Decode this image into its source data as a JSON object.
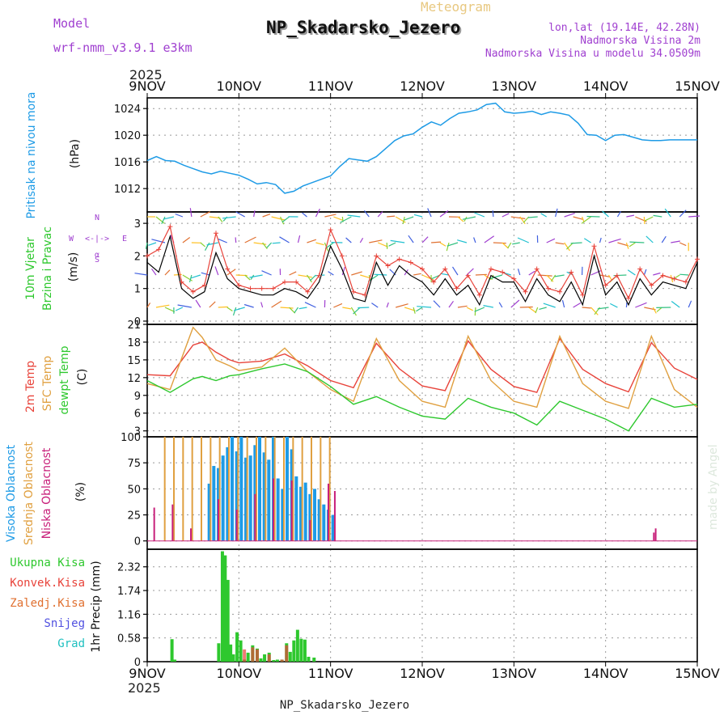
{
  "header": {
    "model_label": "Model",
    "model_name": "wrf-nmm_v3.9.1  e3km",
    "meteogram_label": "Meteogram",
    "station_title": "NP_Skadarsko_Jezero",
    "lonlat": "lon,lat (19.14E, 42.28N)",
    "altitude": "Nadmorska Visina 2m",
    "model_altitude": "Nadmorska Visina u modelu 34.0509m",
    "footer_title": "NP_Skadarsko_Jezero",
    "watermark": "made by Angel",
    "year_top": "2025",
    "year_bottom": "2025"
  },
  "colors": {
    "pressure": "#1e9be6",
    "temp2m": "#e8433a",
    "sfctemp": "#e0a040",
    "dewpt": "#2ec82e",
    "high_cloud": "#1e9be6",
    "mid_cloud": "#e0a040",
    "low_cloud": "#c8207a",
    "precip_total": "#2ec82e",
    "precip_conv": "#e8433a",
    "precip_frz": "#e07030",
    "snow": "#5050e0",
    "hail": "#20c0c0",
    "wind_speed": "#000000",
    "wind_gust": "#e8433a",
    "accent_purple": "#a040d0"
  },
  "chart_data": [
    {
      "type": "line",
      "title": "Pritisak na nivou mora",
      "ylabel": "(hPa)",
      "ylim": [
        1008.5,
        1025.6
      ],
      "yticks": [
        1012,
        1016,
        1020,
        1024
      ],
      "x_days": [
        0,
        0.1,
        0.2,
        0.3,
        0.4,
        0.5,
        0.6,
        0.7,
        0.8,
        0.9,
        1.0,
        1.1,
        1.2,
        1.3,
        1.4,
        1.5,
        1.6,
        1.7,
        1.8,
        1.9,
        2.0,
        2.1,
        2.2,
        2.3,
        2.4,
        2.5,
        2.6,
        2.7,
        2.8,
        2.9,
        3.0,
        3.1,
        3.2,
        3.3,
        3.4,
        3.5,
        3.6,
        3.7,
        3.8,
        3.9,
        4.0,
        4.1,
        4.2,
        4.3,
        4.4,
        4.5,
        4.6,
        4.7,
        4.8,
        4.9,
        5.0,
        5.1,
        5.2,
        5.3,
        5.4,
        5.5,
        5.6,
        5.7,
        5.8,
        5.9,
        6.0
      ],
      "values": [
        1016.2,
        1016.8,
        1016.2,
        1016.1,
        1015.5,
        1015.0,
        1014.5,
        1014.2,
        1014.6,
        1014.3,
        1014.0,
        1013.4,
        1012.7,
        1012.9,
        1012.6,
        1011.3,
        1011.6,
        1012.4,
        1012.9,
        1013.4,
        1013.9,
        1015.3,
        1016.5,
        1016.3,
        1016.1,
        1016.8,
        1018.0,
        1019.2,
        1019.9,
        1020.2,
        1021.2,
        1022.0,
        1021.5,
        1022.5,
        1023.3,
        1023.5,
        1023.8,
        1024.6,
        1024.8,
        1023.5,
        1023.3,
        1023.4,
        1023.6,
        1023.1,
        1023.5,
        1023.3,
        1023.0,
        1021.8,
        1020.1,
        1020.0,
        1019.2,
        1020.0,
        1020.1,
        1019.7,
        1019.3,
        1019.2,
        1019.2,
        1019.3,
        1019.3,
        1019.3,
        1019.3
      ]
    },
    {
      "type": "line",
      "title": "10m Vjetar Brzina i Pravac",
      "ylabel": "(m/s)",
      "ylim": [
        -0.1,
        3.35
      ],
      "yticks": [
        0,
        1,
        2,
        3
      ],
      "direction_key": {
        "n": "N",
        "e": "E",
        "w": "W",
        "s": "S",
        "mid": "<-|->",
        "sym": "α"
      },
      "x_days": [
        0,
        0.125,
        0.25,
        0.375,
        0.5,
        0.625,
        0.75,
        0.875,
        1.0,
        1.125,
        1.25,
        1.375,
        1.5,
        1.625,
        1.75,
        1.875,
        2.0,
        2.125,
        2.25,
        2.375,
        2.5,
        2.625,
        2.75,
        2.875,
        3.0,
        3.125,
        3.25,
        3.375,
        3.5,
        3.625,
        3.75,
        3.875,
        4.0,
        4.125,
        4.25,
        4.375,
        4.5,
        4.625,
        4.75,
        4.875,
        5.0,
        5.125,
        5.25,
        5.375,
        5.5,
        5.625,
        5.75,
        5.875,
        6.0
      ],
      "speed": [
        1.8,
        1.5,
        2.6,
        1.0,
        0.7,
        0.9,
        2.1,
        1.3,
        1.0,
        0.9,
        0.8,
        0.8,
        1.0,
        0.9,
        0.7,
        1.2,
        2.3,
        1.6,
        0.7,
        0.6,
        1.8,
        1.1,
        1.7,
        1.4,
        1.2,
        0.8,
        1.3,
        0.8,
        1.1,
        0.5,
        1.4,
        1.2,
        1.2,
        0.6,
        1.3,
        0.8,
        0.6,
        1.2,
        0.5,
        2.0,
        0.8,
        1.2,
        0.5,
        1.3,
        0.8,
        1.2,
        1.1,
        1.0,
        1.8
      ],
      "gust": [
        2.0,
        2.2,
        2.9,
        1.2,
        0.9,
        1.1,
        2.7,
        1.6,
        1.1,
        1.0,
        1.0,
        1.0,
        1.2,
        1.2,
        0.9,
        1.4,
        2.8,
        2.0,
        0.9,
        0.8,
        2.0,
        1.7,
        1.9,
        1.8,
        1.6,
        1.2,
        1.6,
        1.0,
        1.4,
        0.8,
        1.6,
        1.5,
        1.3,
        0.9,
        1.6,
        1.0,
        0.9,
        1.5,
        0.8,
        2.3,
        1.1,
        1.4,
        0.7,
        1.6,
        1.1,
        1.4,
        1.3,
        1.2,
        1.9
      ]
    },
    {
      "type": "line",
      "title": "2m Temp / SFC Temp / dewpt Temp",
      "ylabel": "(C)",
      "ylim": [
        2.0,
        21.0
      ],
      "yticks": [
        3,
        6,
        9,
        12,
        15,
        18,
        21
      ],
      "series": [
        {
          "name": "2m Temp",
          "x_days": [
            0,
            0.25,
            0.5,
            0.6,
            0.75,
            0.9,
            1.0,
            1.25,
            1.5,
            1.75,
            2.0,
            2.25,
            2.5,
            2.75,
            3.0,
            3.25,
            3.5,
            3.75,
            4.0,
            4.25,
            4.5,
            4.75,
            5.0,
            5.25,
            5.5,
            5.75,
            6.0
          ],
          "values": [
            12.5,
            12.3,
            17.5,
            18.0,
            16.3,
            15.0,
            14.5,
            14.8,
            16.0,
            14.0,
            11.5,
            10.3,
            17.8,
            13.5,
            10.6,
            9.8,
            18.2,
            13.4,
            10.5,
            9.5,
            18.6,
            13.4,
            11.0,
            9.6,
            17.9,
            13.6,
            11.7
          ]
        },
        {
          "name": "SFC Temp",
          "x_days": [
            0,
            0.25,
            0.5,
            0.6,
            0.75,
            0.9,
            1.0,
            1.25,
            1.5,
            1.75,
            2.0,
            2.25,
            2.5,
            2.75,
            3.0,
            3.25,
            3.5,
            3.75,
            4.0,
            4.25,
            4.5,
            4.75,
            5.0,
            5.25,
            5.5,
            5.75,
            6.0
          ],
          "values": [
            11.0,
            10.0,
            20.5,
            18.8,
            15.0,
            14.0,
            13.2,
            13.8,
            17.0,
            13.0,
            10.0,
            8.0,
            18.6,
            11.5,
            8.0,
            7.0,
            19.0,
            11.5,
            8.0,
            7.0,
            19.0,
            11.0,
            8.0,
            6.8,
            19.0,
            10.0,
            7.0
          ]
        },
        {
          "name": "dewpt Temp",
          "x_days": [
            0,
            0.25,
            0.5,
            0.6,
            0.75,
            0.9,
            1.0,
            1.25,
            1.5,
            1.75,
            2.0,
            2.25,
            2.5,
            2.75,
            3.0,
            3.25,
            3.5,
            3.75,
            4.0,
            4.25,
            4.5,
            4.75,
            5.0,
            5.25,
            5.5,
            5.75,
            6.0
          ],
          "values": [
            11.5,
            9.5,
            11.8,
            12.2,
            11.5,
            12.3,
            12.5,
            13.5,
            14.3,
            13.0,
            10.5,
            7.5,
            8.8,
            7.0,
            5.5,
            5.0,
            8.5,
            7.0,
            6.0,
            4.0,
            8.0,
            6.5,
            5.0,
            3.0,
            8.5,
            7.0,
            7.5
          ]
        }
      ]
    },
    {
      "type": "bar",
      "title": "Visoka / Srednja / Niska Oblacnost",
      "ylabel": "(%)",
      "ylim": [
        -8,
        100
      ],
      "yticks": [
        0,
        25,
        50,
        75,
        100
      ],
      "series": [
        {
          "name": "Visoka Oblacnost",
          "x_days": [
            0.65,
            0.7,
            0.75,
            0.8,
            0.85,
            0.9,
            0.95,
            1.0,
            1.05,
            1.1,
            1.15,
            1.2,
            1.25,
            1.3,
            1.35,
            1.4,
            1.45,
            1.5,
            1.55,
            1.6,
            1.65,
            1.7,
            1.75,
            1.8,
            1.85,
            1.9,
            1.95,
            2.0
          ],
          "values": [
            55,
            72,
            70,
            82,
            90,
            100,
            86,
            100,
            80,
            82,
            92,
            100,
            85,
            78,
            100,
            60,
            50,
            100,
            88,
            62,
            52,
            56,
            45,
            50,
            40,
            35,
            30,
            25
          ]
        },
        {
          "name": "Srednja Oblacnost",
          "x_days": [
            0.2,
            0.3,
            0.4,
            0.5,
            0.6,
            0.7,
            0.8,
            0.9,
            1.0,
            1.1,
            1.2,
            1.3,
            1.4,
            1.5,
            1.6,
            1.7,
            1.8,
            1.9,
            2.0
          ],
          "values": [
            100,
            100,
            100,
            100,
            100,
            100,
            100,
            100,
            100,
            100,
            100,
            100,
            100,
            100,
            100,
            100,
            100,
            100,
            100
          ]
        },
        {
          "name": "Niska Oblacnost",
          "x_days": [
            0.05,
            0.25,
            0.45,
            0.75,
            0.95,
            1.15,
            1.35,
            1.55,
            1.75,
            1.95,
            2.02,
            5.5,
            5.52
          ],
          "values": [
            32,
            35,
            12,
            40,
            30,
            45,
            60,
            58,
            20,
            55,
            48,
            8,
            12
          ]
        }
      ]
    },
    {
      "type": "bar",
      "title": "1hr Precip",
      "ylabel": "1hr Precip (mm)",
      "ylim": [
        0,
        2.75
      ],
      "yticks": [
        0,
        0.58,
        1.16,
        1.74,
        2.32
      ],
      "legend": [
        "Ukupna Kisa",
        "Konvek.Kisa",
        "Zaledj.Kisa",
        "Snijeg",
        "Grad"
      ],
      "series": [
        {
          "name": "Ukupna Kisa",
          "x_days": [
            0.27,
            0.3,
            0.78,
            0.82,
            0.85,
            0.88,
            0.91,
            0.94,
            0.98,
            1.02,
            1.06,
            1.1,
            1.15,
            1.2,
            1.24,
            1.28,
            1.33,
            1.38,
            1.42,
            1.47,
            1.52,
            1.56,
            1.6,
            1.64,
            1.68,
            1.72,
            1.76,
            1.82
          ],
          "values": [
            0.55,
            0.05,
            0.45,
            2.7,
            2.6,
            2.0,
            0.42,
            0.18,
            0.72,
            0.52,
            0.05,
            0.22,
            0.4,
            0.32,
            0.08,
            0.18,
            0.22,
            0.04,
            0.05,
            0.05,
            0.45,
            0.24,
            0.52,
            0.78,
            0.56,
            0.54,
            0.12,
            0.1
          ]
        },
        {
          "name": "Konvek.Kisa",
          "x_days": [
            1.06,
            1.15,
            1.2,
            1.33,
            1.47,
            1.52
          ],
          "values": [
            0.3,
            0.35,
            0.3,
            0.18,
            0.05,
            0.4
          ]
        }
      ]
    }
  ],
  "xaxis": {
    "days": [
      "9NOV",
      "10NOV",
      "11NOV",
      "12NOV",
      "13NOV",
      "14NOV",
      "15NOV"
    ]
  }
}
